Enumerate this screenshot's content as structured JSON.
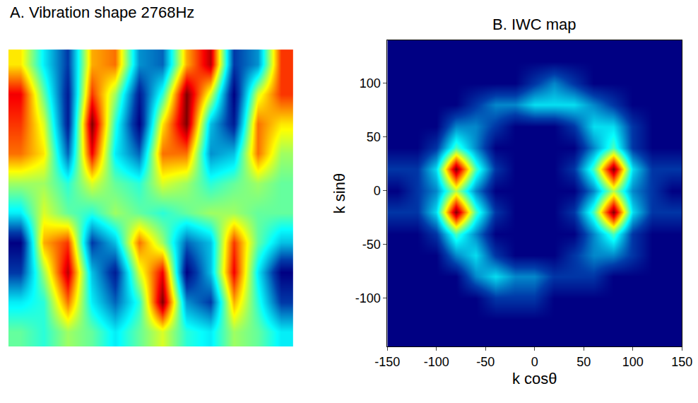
{
  "chart_data": [
    {
      "type": "heatmap",
      "title": "A. Vibration shape 2768Hz",
      "tick_labels": false,
      "z": [
        [
          3,
          -2,
          -6,
          4,
          5,
          -4,
          -5,
          4,
          8,
          -6,
          -4,
          6
        ],
        [
          7,
          0,
          -7,
          6,
          1,
          -7,
          -1,
          9,
          2,
          -8,
          2,
          6
        ],
        [
          6,
          2,
          -7,
          9,
          -1,
          -8,
          3,
          9,
          -3,
          -7,
          5,
          3
        ],
        [
          5,
          3,
          -5,
          7,
          -2,
          -5,
          5,
          5,
          -4,
          -3,
          5,
          1
        ],
        [
          1,
          1,
          -1,
          2,
          0,
          -1,
          2,
          1,
          -1,
          0,
          1,
          0
        ],
        [
          -2,
          2,
          0,
          -1,
          1,
          0,
          -1,
          0,
          1,
          1,
          0,
          0
        ],
        [
          -8,
          4,
          6,
          -6,
          -3,
          5,
          1,
          -5,
          -3,
          6,
          0,
          -3
        ],
        [
          -6,
          1,
          8,
          -3,
          -7,
          2,
          7,
          -8,
          -3,
          7,
          -2,
          -8
        ],
        [
          -2,
          -1,
          5,
          -2,
          -5,
          -1,
          9,
          -4,
          -6,
          4,
          -1,
          -6
        ],
        [
          0,
          -1,
          1,
          0,
          -2,
          0,
          2,
          -1,
          -2,
          1,
          0,
          -2
        ]
      ]
    },
    {
      "type": "heatmap",
      "title": "B. IWC map",
      "x_label": "k cosθ",
      "y_label": "k sinθ",
      "x": [
        -140,
        -120,
        -100,
        -80,
        -60,
        -40,
        -20,
        0,
        20,
        40,
        60,
        80,
        100,
        120,
        140
      ],
      "y": [
        140,
        120,
        100,
        80,
        60,
        40,
        20,
        0,
        -20,
        -40,
        -60,
        -80,
        -100,
        -120,
        -140
      ],
      "z": [
        [
          0,
          0,
          0,
          0,
          0,
          0,
          0,
          0,
          0,
          0,
          0,
          0,
          0,
          0,
          0
        ],
        [
          0,
          0,
          0,
          0,
          0,
          0,
          0,
          0,
          0,
          0,
          0,
          0,
          0,
          0,
          0
        ],
        [
          0,
          0,
          0,
          0,
          0,
          0,
          0,
          1,
          2,
          1,
          0,
          0,
          0,
          0,
          0
        ],
        [
          0,
          0,
          0,
          0,
          1,
          2,
          2,
          3,
          3,
          3,
          2,
          1,
          0,
          0,
          0
        ],
        [
          0,
          0,
          0,
          2,
          2,
          1,
          0,
          0,
          0,
          1,
          3,
          3,
          1,
          0,
          0
        ],
        [
          0,
          0,
          1,
          4,
          2,
          0,
          0,
          0,
          0,
          0,
          2,
          4,
          1,
          0,
          0
        ],
        [
          1,
          1,
          3,
          9,
          4,
          1,
          0,
          0,
          0,
          1,
          4,
          9,
          3,
          1,
          1
        ],
        [
          0,
          1,
          2,
          5,
          2,
          0,
          0,
          0,
          0,
          0,
          2,
          5,
          2,
          1,
          0
        ],
        [
          1,
          1,
          3,
          9,
          4,
          1,
          0,
          0,
          0,
          1,
          4,
          9,
          3,
          1,
          1
        ],
        [
          0,
          0,
          1,
          4,
          2,
          0,
          0,
          0,
          0,
          0,
          2,
          4,
          1,
          0,
          0
        ],
        [
          0,
          0,
          0,
          2,
          3,
          1,
          0,
          0,
          0,
          1,
          2,
          2,
          1,
          0,
          0
        ],
        [
          0,
          0,
          0,
          0,
          2,
          3,
          2,
          2,
          1,
          1,
          1,
          0,
          0,
          0,
          0
        ],
        [
          0,
          0,
          0,
          0,
          0,
          1,
          1,
          1,
          0,
          0,
          0,
          0,
          0,
          0,
          0
        ],
        [
          0,
          0,
          0,
          0,
          0,
          0,
          0,
          0,
          0,
          0,
          0,
          0,
          0,
          0,
          0
        ],
        [
          0,
          0,
          0,
          0,
          0,
          0,
          0,
          0,
          0,
          0,
          0,
          0,
          0,
          0,
          0
        ]
      ],
      "xlim": [
        -150,
        150
      ],
      "ylim": [
        -145,
        140
      ],
      "xticks": [
        -150,
        -100,
        -50,
        0,
        50,
        100,
        150
      ],
      "yticks": [
        -100,
        -50,
        0,
        50,
        100
      ],
      "grid": false
    }
  ]
}
